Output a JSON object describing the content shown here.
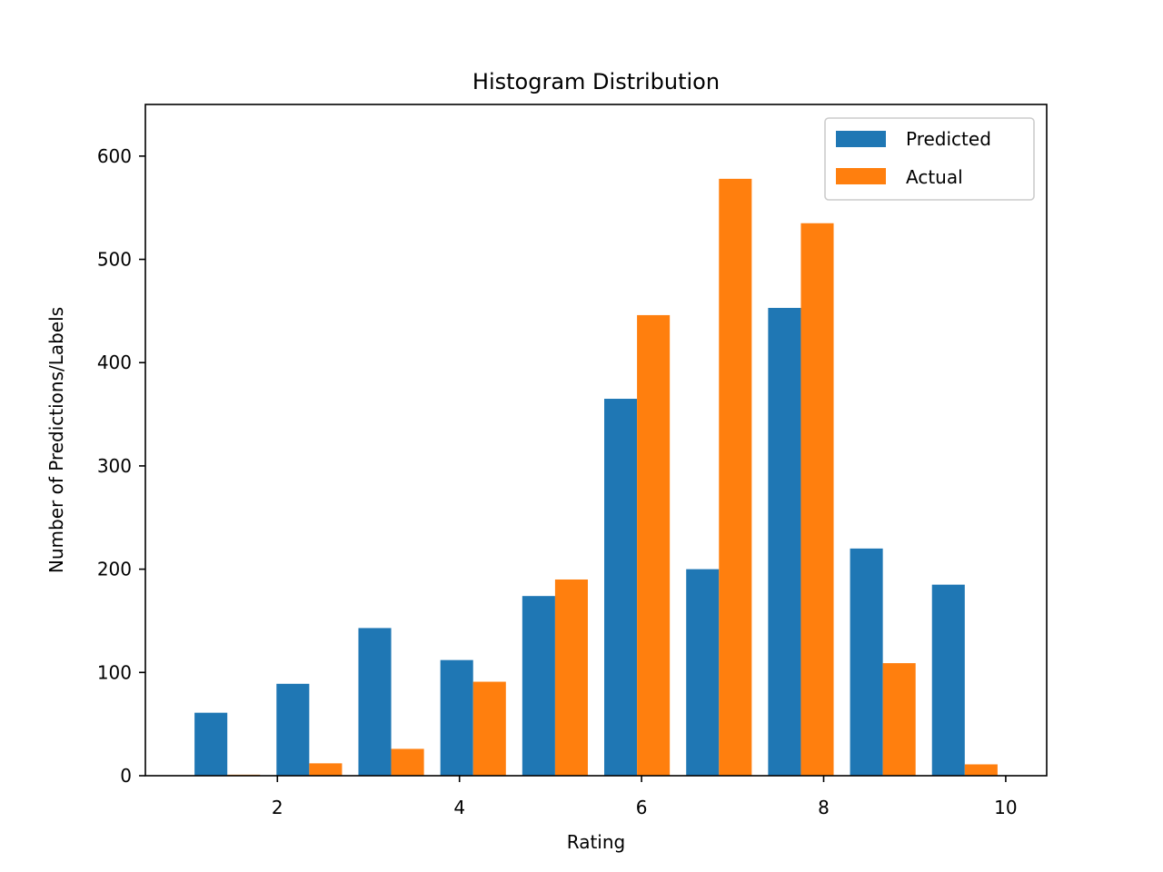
{
  "chart_data": {
    "type": "bar",
    "title": "Histogram Distribution",
    "xlabel": "Rating",
    "ylabel": "Number of Predictions/Labels",
    "xlim": [
      0.55,
      10.45
    ],
    "ylim": [
      0,
      650
    ],
    "xticks": [
      2,
      4,
      6,
      8,
      10
    ],
    "yticks": [
      0,
      100,
      200,
      300,
      400,
      500,
      600
    ],
    "bin_edges": [
      1.0,
      1.9,
      2.8,
      3.7,
      4.6,
      5.5,
      6.4,
      7.3,
      8.2,
      9.1,
      10.0
    ],
    "grid": false,
    "legend_position": "top-right",
    "series": [
      {
        "name": "Predicted",
        "color": "#1f77b4",
        "values": [
          61,
          89,
          143,
          112,
          174,
          365,
          200,
          453,
          220,
          185
        ]
      },
      {
        "name": "Actual",
        "color": "#ff7f0e",
        "values": [
          1,
          12,
          26,
          91,
          190,
          446,
          578,
          535,
          109,
          11
        ]
      }
    ]
  }
}
